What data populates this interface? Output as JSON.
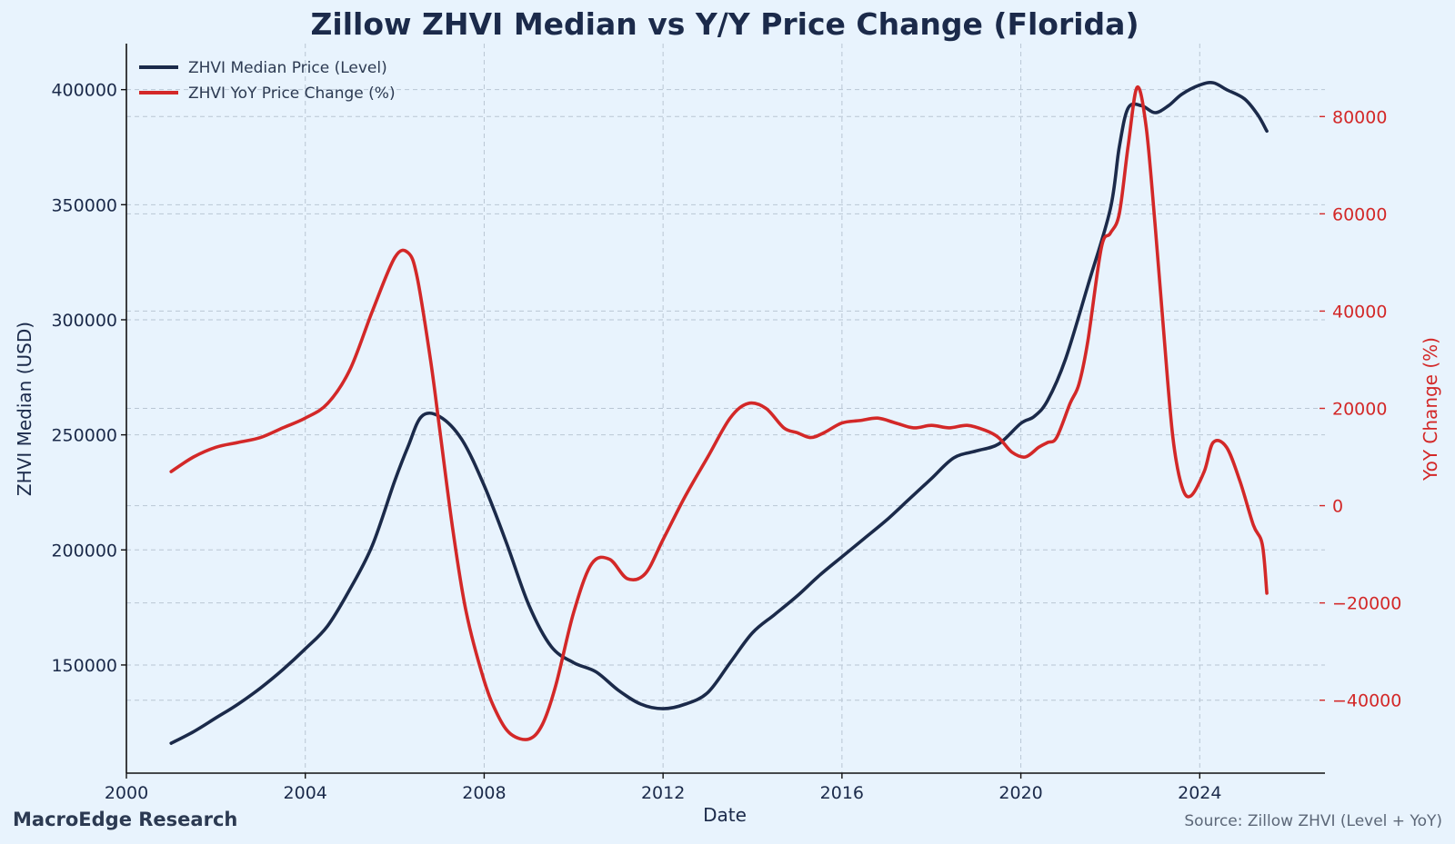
{
  "chart_data": {
    "type": "line",
    "title": "Zillow ZHVI Median vs Y/Y Price Change (Florida)",
    "xlabel": "Date",
    "ylabel": "ZHVI Median (USD)",
    "y2label": "YoY Change (%)",
    "xlim": [
      2000,
      2026.8
    ],
    "ylim": [
      103000,
      420000
    ],
    "y2lim": [
      -55000,
      95000
    ],
    "x_ticks": [
      2000,
      2004,
      2008,
      2012,
      2016,
      2020,
      2024
    ],
    "x_tick_labels": [
      "2000",
      "2004",
      "2008",
      "2012",
      "2016",
      "2020",
      "2024"
    ],
    "y_ticks": [
      150000,
      200000,
      250000,
      300000,
      350000,
      400000
    ],
    "y_tick_labels": [
      "150000",
      "200000",
      "250000",
      "300000",
      "350000",
      "400000"
    ],
    "y2_ticks": [
      -40000,
      -20000,
      0,
      20000,
      40000,
      60000,
      80000
    ],
    "y2_tick_labels": [
      "−40000",
      "−20000",
      "0",
      "20000",
      "40000",
      "60000",
      "80000"
    ],
    "grid": true,
    "legend_position": "top-left",
    "series": [
      {
        "name": "ZHVI Median Price (Level)",
        "color": "#1b2a4a",
        "axis": "left",
        "x": [
          2001.0,
          2001.5,
          2002.0,
          2002.5,
          2003.0,
          2003.5,
          2004.0,
          2004.5,
          2005.0,
          2005.5,
          2006.0,
          2006.3,
          2006.6,
          2007.0,
          2007.5,
          2008.0,
          2008.5,
          2009.0,
          2009.5,
          2010.0,
          2010.5,
          2011.0,
          2011.5,
          2012.0,
          2012.5,
          2013.0,
          2013.5,
          2014.0,
          2014.5,
          2015.0,
          2015.5,
          2016.0,
          2016.5,
          2017.0,
          2017.5,
          2018.0,
          2018.5,
          2019.0,
          2019.5,
          2020.0,
          2020.3,
          2020.6,
          2021.0,
          2021.5,
          2022.0,
          2022.2,
          2022.4,
          2022.7,
          2023.0,
          2023.3,
          2023.6,
          2024.0,
          2024.3,
          2024.6,
          2025.0,
          2025.3,
          2025.5
        ],
        "values": [
          116000,
          121000,
          127000,
          133000,
          140000,
          148000,
          157000,
          167000,
          183000,
          202000,
          230000,
          245000,
          258000,
          258000,
          248000,
          228000,
          203000,
          176000,
          158000,
          151000,
          147000,
          139000,
          133000,
          131000,
          133000,
          138000,
          151000,
          164000,
          172000,
          180000,
          189000,
          197000,
          205000,
          213000,
          222000,
          231000,
          240000,
          243000,
          246000,
          255000,
          258000,
          265000,
          283000,
          315000,
          348000,
          375000,
          392000,
          393000,
          390000,
          393000,
          398000,
          402000,
          403000,
          400000,
          396000,
          389000,
          382000
        ]
      },
      {
        "name": "ZHVI YoY Price Change (%)",
        "color": "#d32828",
        "axis": "right",
        "x": [
          2001.0,
          2001.5,
          2002.0,
          2002.5,
          2003.0,
          2003.5,
          2004.0,
          2004.5,
          2005.0,
          2005.5,
          2006.0,
          2006.3,
          2006.5,
          2006.8,
          2007.0,
          2007.3,
          2007.6,
          2008.0,
          2008.3,
          2008.6,
          2009.0,
          2009.3,
          2009.6,
          2010.0,
          2010.4,
          2010.8,
          2011.2,
          2011.6,
          2012.0,
          2012.5,
          2013.0,
          2013.5,
          2013.9,
          2014.3,
          2014.7,
          2015.0,
          2015.3,
          2015.6,
          2016.0,
          2016.4,
          2016.8,
          2017.2,
          2017.6,
          2018.0,
          2018.4,
          2018.8,
          2019.2,
          2019.5,
          2019.8,
          2020.1,
          2020.4,
          2020.6,
          2020.8,
          2021.1,
          2021.3,
          2021.5,
          2021.8,
          2022.0,
          2022.2,
          2022.4,
          2022.6,
          2022.8,
          2023.0,
          2023.2,
          2023.4,
          2023.6,
          2023.8,
          2024.1,
          2024.3,
          2024.6,
          2024.9,
          2025.2,
          2025.4,
          2025.5
        ],
        "values": [
          7000,
          10000,
          12000,
          13000,
          14000,
          16000,
          18000,
          21000,
          28000,
          40000,
          51000,
          52000,
          47000,
          30000,
          16000,
          -5000,
          -22000,
          -36000,
          -43000,
          -47000,
          -48000,
          -45000,
          -37000,
          -22000,
          -12000,
          -11000,
          -15000,
          -14000,
          -7000,
          2000,
          10000,
          18000,
          21000,
          20000,
          16000,
          15000,
          14000,
          15000,
          17000,
          17500,
          18000,
          17000,
          16000,
          16500,
          16000,
          16500,
          15500,
          14000,
          11000,
          10000,
          12000,
          13000,
          14000,
          21000,
          25000,
          34000,
          53000,
          56000,
          60000,
          74000,
          86000,
          78000,
          58000,
          35000,
          14000,
          4000,
          2000,
          7000,
          13000,
          12000,
          5000,
          -4000,
          -8000,
          -18000
        ]
      }
    ]
  },
  "footer": {
    "brand": "MacroEdge Research",
    "source": "Source: Zillow ZHVI (Level + YoY)"
  }
}
